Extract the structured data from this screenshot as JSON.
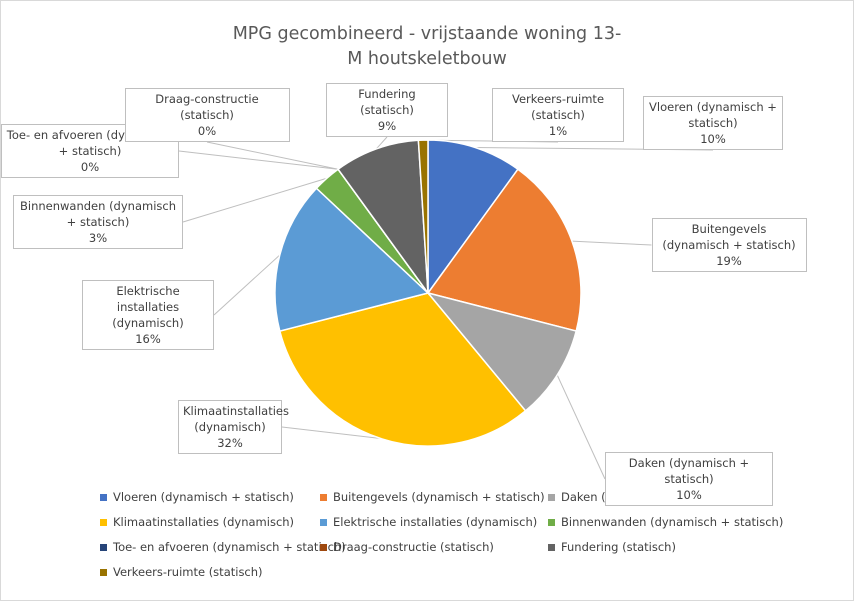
{
  "chart_data": {
    "type": "pie",
    "title": "MPG gecombineerd - vrijstaande woning 13-M houtskeletbouw",
    "categories": [
      "Vloeren (dynamisch + statisch)",
      "Buitengevels (dynamisch + statisch)",
      "Daken (dynamisch + statisch)",
      "Klimaatinstallaties (dynamisch)",
      "Elektrische installaties (dynamisch)",
      "Binnenwanden (dynamisch + statisch)",
      "Toe- en afvoeren (dynamisch + statisch)",
      "Draag-constructie (statisch)",
      "Fundering (statisch)",
      "Verkeers-ruimte (statisch)"
    ],
    "values": [
      10,
      19,
      10,
      32,
      16,
      3,
      0,
      0,
      9,
      1
    ],
    "value_labels": [
      "10%",
      "19%",
      "10%",
      "32%",
      "16%",
      "3%",
      "0%",
      "0%",
      "9%",
      "1%"
    ],
    "colors": [
      "#4472c4",
      "#ed7d31",
      "#a5a5a5",
      "#ffc000",
      "#5b9bd5",
      "#70ad47",
      "#264478",
      "#9e480e",
      "#636363",
      "#997300"
    ],
    "legend": "bottom"
  }
}
